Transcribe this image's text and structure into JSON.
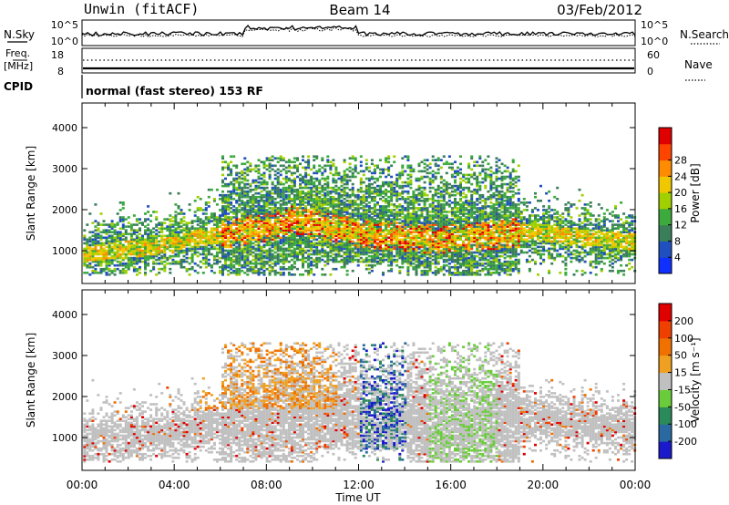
{
  "header": {
    "station": "Unwin (fitACF)",
    "beam": "Beam 14",
    "date": "03/Feb/2012"
  },
  "strips": {
    "nsky_label": "N.Sky",
    "nsky_ticks": [
      "10^5",
      "10^0"
    ],
    "nsearch_label": "N.Search",
    "nsearch_ticks": [
      "10^5",
      "10^0"
    ],
    "freq_label_line1": "Freq.",
    "freq_label_line2": "[MHz]",
    "freq_ticks": [
      "18",
      "8"
    ],
    "nave_label": "Nave",
    "nave_ticks": [
      "60",
      "0"
    ],
    "cpid_label": "CPID",
    "cpid_text": "normal (fast stereo) 153 RF"
  },
  "chart_data": [
    {
      "type": "heatmap",
      "name": "power-panel",
      "ylabel": "Slant Range [km]",
      "xlim_hours": [
        0,
        24
      ],
      "ylim": [
        200,
        4600
      ],
      "yticks": [
        "1000",
        "2000",
        "3000",
        "4000"
      ],
      "colorbar_label": "Power [dB]",
      "colorbar_ticks": [
        "4",
        "8",
        "12",
        "16",
        "20",
        "24",
        "28"
      ],
      "colorbar_colors": [
        "#1030ff",
        "#2050c0",
        "#3a7f5a",
        "#3caa3c",
        "#a0d000",
        "#f0c800",
        "#ff8c00",
        "#ff4400",
        "#e00000"
      ]
    },
    {
      "type": "heatmap",
      "name": "velocity-panel",
      "ylabel": "Slant Range [km]",
      "xlim_hours": [
        0,
        24
      ],
      "ylim": [
        200,
        4600
      ],
      "yticks": [
        "1000",
        "2000",
        "3000",
        "4000"
      ],
      "colorbar_label": "Velocity [m s⁻¹]",
      "colorbar_ticks": [
        "200",
        "100",
        "50",
        "15",
        "-15",
        "-50",
        "-100",
        "-200"
      ],
      "colorbar_colors": [
        "#1a1acc",
        "#2a6aa0",
        "#2a8a5a",
        "#6acc3a",
        "#c0c0c0",
        "#f0a020",
        "#f07000",
        "#f04000",
        "#e00000"
      ]
    }
  ],
  "xaxis": {
    "ticks": [
      "00:00",
      "04:00",
      "08:00",
      "12:00",
      "16:00",
      "20:00",
      "00:00"
    ],
    "label": "Time UT"
  }
}
